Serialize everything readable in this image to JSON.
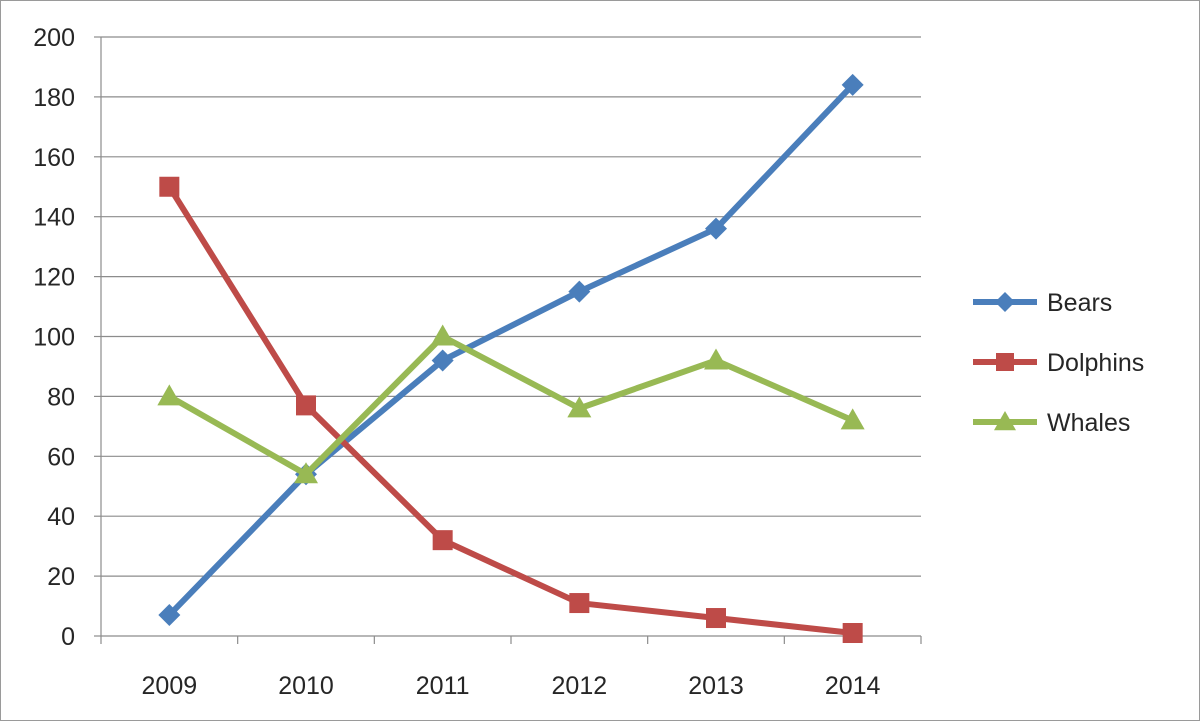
{
  "chart_data": {
    "type": "line",
    "categories": [
      "2009",
      "2010",
      "2011",
      "2012",
      "2013",
      "2014"
    ],
    "series": [
      {
        "name": "Bears",
        "values": [
          7,
          54,
          92,
          115,
          136,
          184
        ],
        "color": "#4a7ebb",
        "marker": "diamond"
      },
      {
        "name": "Dolphins",
        "values": [
          150,
          77,
          32,
          11,
          6,
          1
        ],
        "color": "#be4b48",
        "marker": "square"
      },
      {
        "name": "Whales",
        "values": [
          80,
          54,
          100,
          76,
          92,
          72
        ],
        "color": "#98b954",
        "marker": "triangle"
      }
    ],
    "title": "",
    "xlabel": "",
    "ylabel": "",
    "ylim": [
      0,
      200
    ],
    "ytick_step": 20,
    "grid": true,
    "legend_position": "right"
  }
}
